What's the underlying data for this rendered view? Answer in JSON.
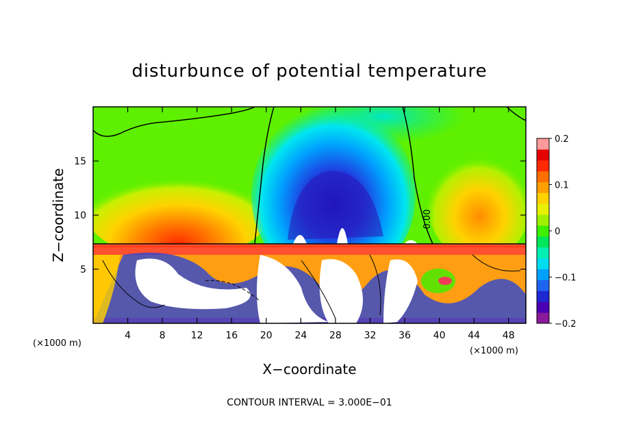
{
  "chart_data": {
    "type": "heatmap",
    "title": "disturbunce of potential temperature",
    "xlabel": "X−coordinate",
    "ylabel": "Z−coordinate",
    "x_unit": "(×1000 m)",
    "z_unit": "(×1000 m)",
    "xlim": [
      0,
      50
    ],
    "ylim": [
      0,
      20
    ],
    "x_ticks": [
      "4",
      "8",
      "12",
      "16",
      "20",
      "24",
      "28",
      "32",
      "36",
      "40",
      "44",
      "48"
    ],
    "x_tick_values": [
      4,
      8,
      12,
      16,
      20,
      24,
      28,
      32,
      36,
      40,
      44,
      48
    ],
    "y_ticks": [
      "5",
      "10",
      "15"
    ],
    "y_tick_values": [
      5,
      10,
      15
    ],
    "colorbar": {
      "min": -0.2,
      "max": 0.2,
      "labels": [
        "0.2",
        "0.1",
        "0",
        "−0.1",
        "−0.2"
      ],
      "label_values": [
        0.2,
        0.1,
        0,
        -0.1,
        -0.2
      ],
      "colors": [
        "#8b1a9a",
        "#4b00b4",
        "#1e28d2",
        "#1e64f0",
        "#00a0ff",
        "#00dcf0",
        "#00f0b4",
        "#00e65a",
        "#3cf000",
        "#a0f000",
        "#e6f000",
        "#ffd200",
        "#ffa000",
        "#ff6e00",
        "#ff2a00",
        "#e60000",
        "#ff9a9a"
      ]
    },
    "contour_label": "0.00",
    "footer": "CONTOUR INTERVAL = 3.000E−01"
  }
}
